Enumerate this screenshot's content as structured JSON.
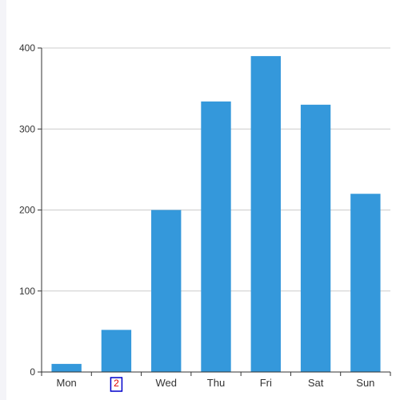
{
  "chart_data": {
    "type": "bar",
    "categories": [
      "Mon",
      "2",
      "Wed",
      "Thu",
      "Fri",
      "Sat",
      "Sun"
    ],
    "highlighted_category_index": 1,
    "values": [
      10,
      52,
      200,
      334,
      390,
      330,
      220
    ],
    "ylim": [
      0,
      400
    ],
    "yticks": [
      0,
      100,
      200,
      300,
      400
    ],
    "title": "",
    "xlabel": "",
    "ylabel": "",
    "grid": true,
    "bar_color": "#3498db",
    "grid_color": "#cccccc",
    "axis_color": "#333333",
    "highlight_box_color": "#0000cc",
    "highlight_text_color": "#e00000"
  }
}
